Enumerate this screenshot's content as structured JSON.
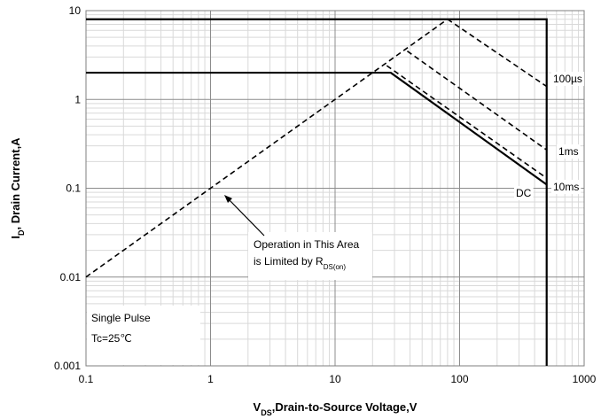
{
  "chart_data": {
    "type": "line",
    "x_label": {
      "main": "V",
      "sub": "DS",
      "rest": ",Drain-to-Source Voltage,V"
    },
    "y_label": {
      "main": "I",
      "sub": "D",
      "rest": ", Drain Current,A"
    },
    "log_x": true,
    "log_y": true,
    "grid": true,
    "minor_grid": true,
    "xlim": [
      0.1,
      1000
    ],
    "xticks": [
      0.1,
      1,
      10,
      100,
      1000
    ],
    "ylim": [
      0.001,
      10
    ],
    "yticks": [
      0.001,
      0.01,
      0.1,
      1,
      10
    ],
    "series": [
      {
        "style": "solid",
        "color": "#000000",
        "x": [
          0.1,
          500,
          500
        ],
        "values": [
          8,
          8,
          0.001
        ]
      },
      {
        "name": "DC",
        "style": "solid",
        "color": "#000000",
        "x": [
          0.1,
          28,
          500
        ],
        "values": [
          2,
          2,
          0.11
        ]
      },
      {
        "style": "dashed",
        "color": "#000000",
        "x": [
          0.1,
          80
        ],
        "values": [
          0.01,
          8
        ]
      },
      {
        "name": "100µs",
        "style": "dashed",
        "color": "#000000",
        "x": [
          80,
          500
        ],
        "values": [
          8,
          1.4
        ]
      },
      {
        "name": "1ms",
        "style": "dashed",
        "color": "#000000",
        "x": [
          38,
          500
        ],
        "values": [
          3.5,
          0.27
        ]
      },
      {
        "name": "10ms",
        "style": "dashed",
        "color": "#000000",
        "x": [
          26,
          500
        ],
        "values": [
          2.4,
          0.13
        ]
      }
    ],
    "annotation": {
      "line1": "Operation in This Area",
      "line2_main": "is Limited by R",
      "line2_sub": "DS(on)"
    },
    "conditions": [
      "Single Pulse",
      "Tc=25℃"
    ]
  }
}
